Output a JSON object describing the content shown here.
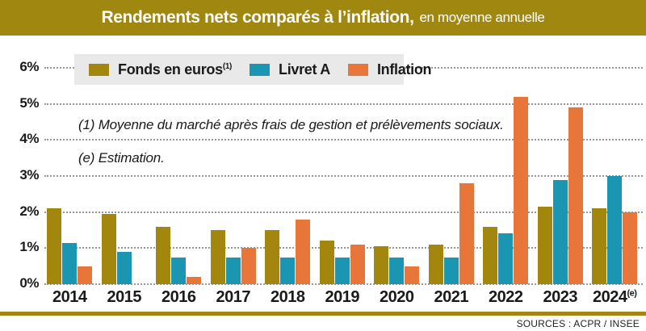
{
  "title": {
    "main": "Rendements nets comparés à l’inflation,",
    "subtitle": "en moyenne annuelle"
  },
  "legend": {
    "items": [
      {
        "label": "Fonds en euros",
        "sup": "(1)",
        "color": "#a3860e"
      },
      {
        "label": "Livret A",
        "sup": "",
        "color": "#1a96b2"
      },
      {
        "label": "Inflation",
        "sup": "",
        "color": "#e8763a"
      }
    ]
  },
  "notes": {
    "note1": "(1) Moyenne du marché après frais de gestion et prélèvements sociaux.",
    "note2": "(e) Estimation."
  },
  "source": "SOURCES : ACPR / INSEE",
  "chart_data": {
    "type": "bar",
    "title": "Rendements nets comparés à l’inflation, en moyenne annuelle",
    "unit": "%",
    "categories": [
      {
        "label": "2014",
        "sup": ""
      },
      {
        "label": "2015",
        "sup": ""
      },
      {
        "label": "2016",
        "sup": ""
      },
      {
        "label": "2017",
        "sup": ""
      },
      {
        "label": "2018",
        "sup": ""
      },
      {
        "label": "2019",
        "sup": ""
      },
      {
        "label": "2020",
        "sup": ""
      },
      {
        "label": "2021",
        "sup": ""
      },
      {
        "label": "2022",
        "sup": ""
      },
      {
        "label": "2023",
        "sup": ""
      },
      {
        "label": "2024",
        "sup": "(e)"
      }
    ],
    "series": [
      {
        "name": "Fonds en euros (1)",
        "color": "#a3860e",
        "values": [
          2.1,
          1.95,
          1.6,
          1.5,
          1.5,
          1.2,
          1.05,
          1.1,
          1.6,
          2.15,
          2.1
        ]
      },
      {
        "name": "Livret A",
        "color": "#1a96b2",
        "values": [
          1.15,
          0.9,
          0.75,
          0.75,
          0.75,
          0.75,
          0.75,
          0.75,
          1.4,
          2.9,
          3.0
        ]
      },
      {
        "name": "Inflation",
        "color": "#e8763a",
        "values": [
          0.5,
          0,
          0.2,
          1.0,
          1.8,
          1.1,
          0.5,
          2.8,
          5.2,
          4.9,
          2.0
        ]
      }
    ],
    "yticks": [
      "6%",
      "5%",
      "4%",
      "3%",
      "2%",
      "1%",
      "0%"
    ],
    "ylim": [
      0,
      6
    ],
    "grid": "horizontal-dotted",
    "legend_position": "top-left"
  }
}
